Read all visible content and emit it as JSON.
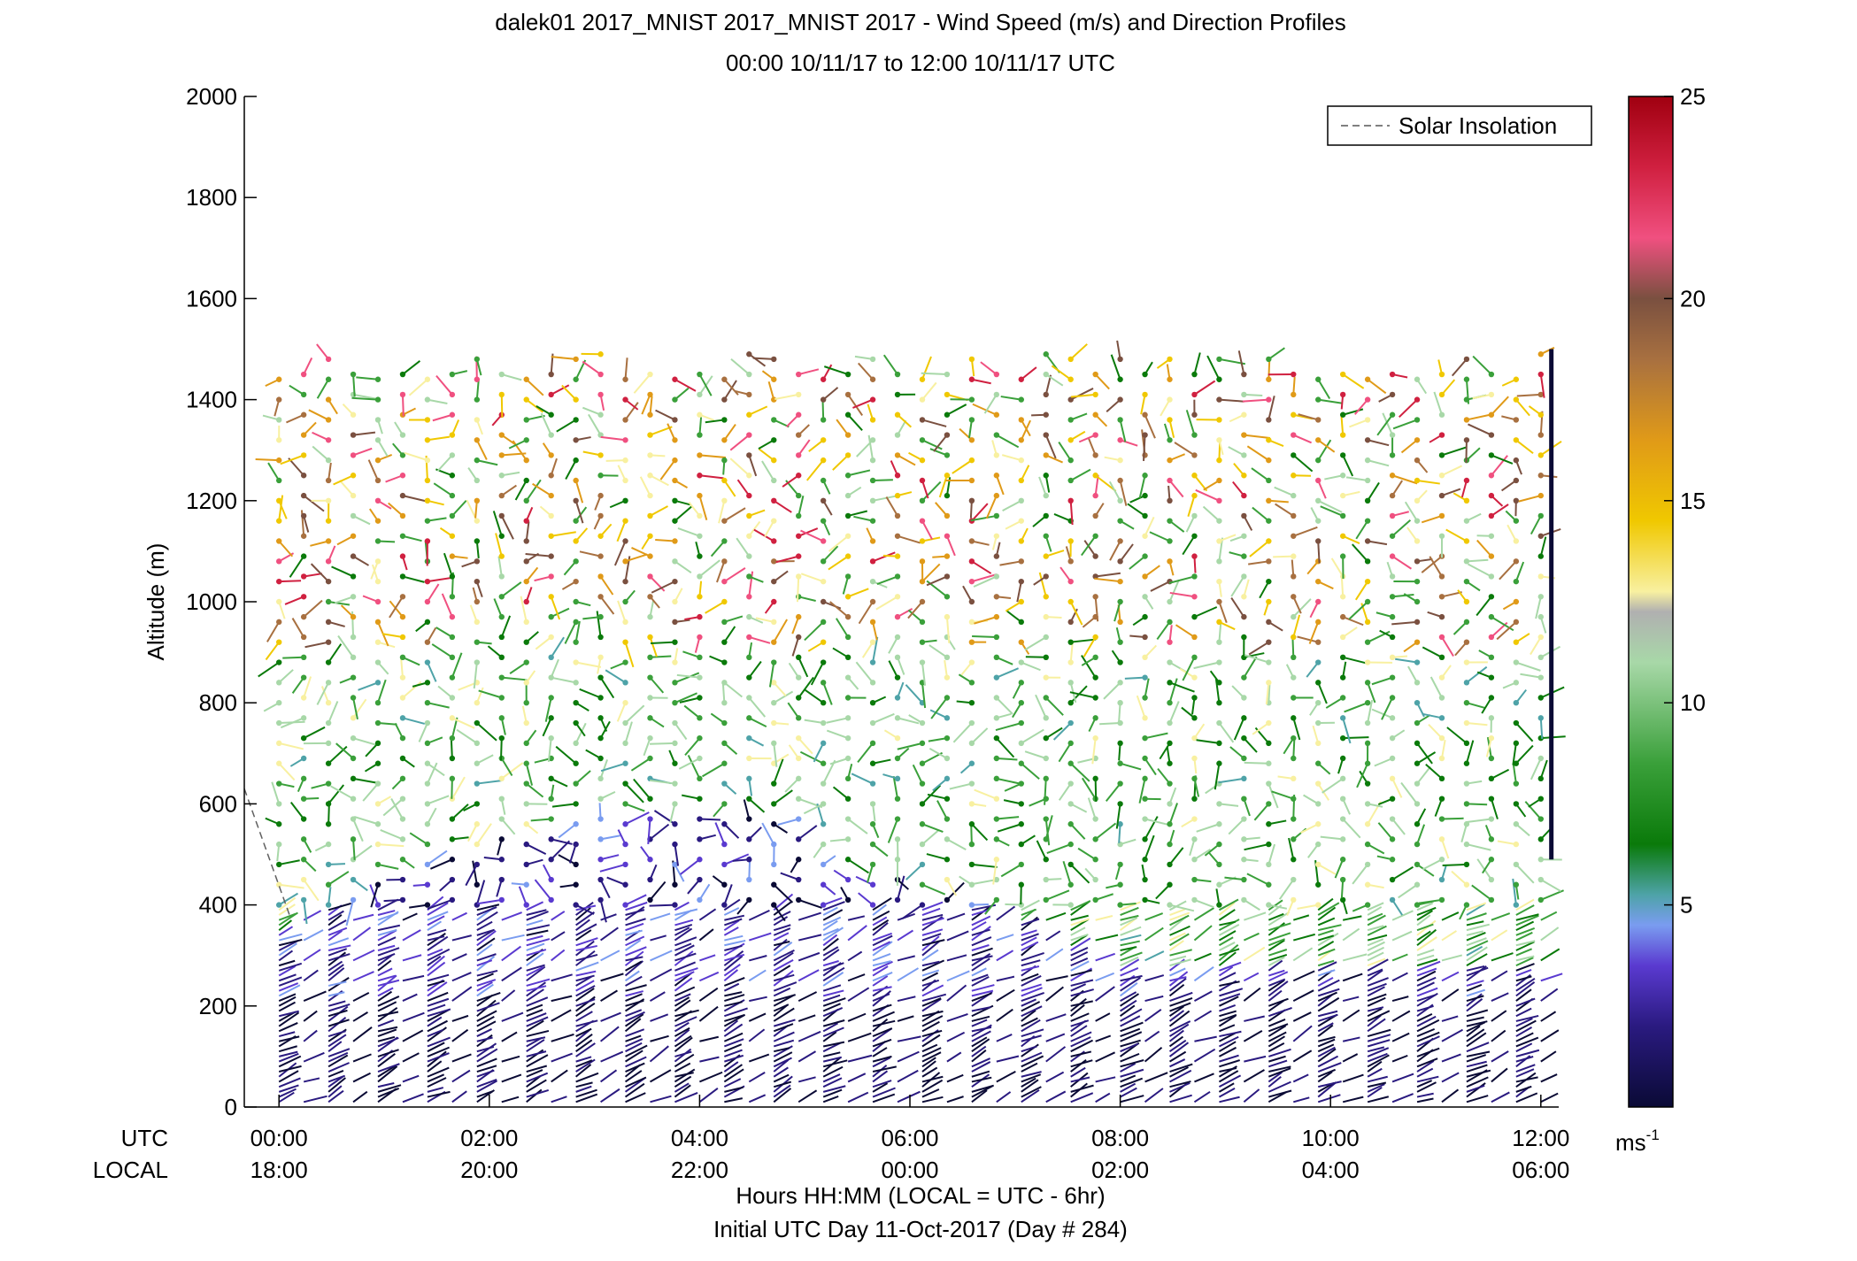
{
  "chart_data": {
    "type": "scatter",
    "title_line1": "dalek01 2017_MNIST 2017_MNIST 2017 - Wind Speed (m/s) and Direction Profiles",
    "title_line2": "00:00 10/11/17 to 12:00 10/11/17  UTC",
    "ylabel": "Altitude (m)",
    "ylim": [
      0,
      2000
    ],
    "yticks": [
      0,
      200,
      400,
      600,
      800,
      1000,
      1200,
      1400,
      1600,
      1800,
      2000
    ],
    "xlim_hours": [
      -0.33,
      12.17
    ],
    "xticks_hours": [
      0,
      2,
      4,
      6,
      8,
      10,
      12
    ],
    "utc_row_label": "UTC",
    "local_row_label": "LOCAL",
    "utc_tick_labels": [
      "00:00",
      "02:00",
      "04:00",
      "06:00",
      "08:00",
      "10:00",
      "12:00"
    ],
    "local_tick_labels": [
      "18:00",
      "20:00",
      "22:00",
      "00:00",
      "02:00",
      "04:00",
      "06:00"
    ],
    "xlabel_line1": "Hours HH:MM  (LOCAL = UTC - 6hr)",
    "xlabel_line2": "Initial UTC Day 11-Oct-2017 (Day # 284)",
    "legend": {
      "label": "Solar Insolation",
      "placement": "top-right",
      "line_style": "dashed",
      "color": "#808080"
    },
    "colorbar": {
      "min": 0,
      "max": 25,
      "ticks": [
        5,
        10,
        15,
        20,
        25
      ],
      "unit_base": "ms",
      "unit_exp": "-1",
      "colormap": "dark-navy-purple-blue-green-yellow-orange-brown-pink-red"
    },
    "solar_insolation": {
      "x_hours": [
        -0.33,
        0.1
      ],
      "y": [
        630,
        380
      ]
    },
    "profiles": {
      "start_hour": 0.0,
      "end_hour": 12.0,
      "count": 52,
      "top_altitude_range": [
        1450,
        1500
      ],
      "description_level": "wind barbs colored by speed at each altitude gate"
    }
  }
}
